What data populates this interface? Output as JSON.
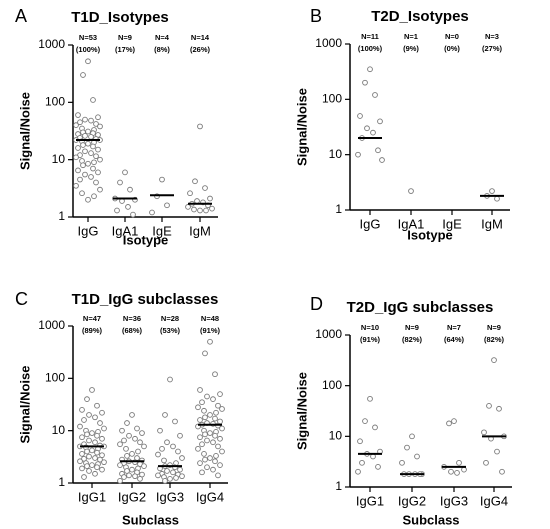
{
  "chart_data": [
    {
      "type": "dotplot",
      "panel": "A",
      "title": "T1D_Isotypes",
      "x_label": "Isotype",
      "y_label": "Signal/Noise",
      "log_y": true,
      "ylim": [
        1,
        1000
      ],
      "yticks": [
        1,
        10,
        100,
        1000
      ],
      "categories": [
        "IgG",
        "IgA1",
        "IgE",
        "IgM"
      ],
      "n_labels": [
        "N=53",
        "N=9",
        "N=4",
        "N=14"
      ],
      "pct_labels": [
        "(100%)",
        "(17%)",
        "(8%)",
        "(26%)"
      ],
      "medians": [
        22,
        2.1,
        2.4,
        1.7
      ],
      "points": [
        [
          520,
          300,
          110,
          60,
          55,
          50,
          48,
          45,
          42,
          40,
          38,
          35,
          33,
          31,
          30,
          29,
          28,
          27,
          26,
          25,
          24,
          23,
          22,
          22,
          21,
          20,
          19,
          18,
          17,
          16,
          15,
          14,
          13,
          12,
          11.5,
          11,
          10,
          9.5,
          9,
          8.5,
          8,
          7,
          6.5,
          6,
          5.5,
          5,
          4.5,
          4,
          3.5,
          3,
          2.6,
          2.3,
          2.0
        ],
        [
          6,
          4,
          3,
          2.1,
          2.0,
          1.9,
          1.5,
          1.3,
          1.1
        ],
        [
          4.5,
          2.3,
          1.6,
          1.2
        ],
        [
          38,
          4.2,
          3.2,
          2.6,
          2.1,
          1.9,
          1.8,
          1.7,
          1.6,
          1.5,
          1.4,
          1.35,
          1.3,
          1.3
        ]
      ]
    },
    {
      "type": "dotplot",
      "panel": "B",
      "title": "T2D_Isotypes",
      "x_label": "Isotype",
      "y_label": "Signal/Noise",
      "log_y": true,
      "ylim": [
        1,
        1000
      ],
      "yticks": [
        1,
        10,
        100,
        1000
      ],
      "categories": [
        "IgG",
        "IgA1",
        "IgE",
        "IgM"
      ],
      "n_labels": [
        "N=11",
        "N=1",
        "N=0",
        "N=3"
      ],
      "pct_labels": [
        "(100%)",
        "(9%)",
        "(0%)",
        "(27%)"
      ],
      "medians": [
        20,
        null,
        null,
        1.8
      ],
      "points": [
        [
          350,
          200,
          120,
          50,
          40,
          30,
          25,
          20,
          12,
          10,
          8
        ],
        [
          2.2
        ],
        [],
        [
          2.2,
          1.8,
          1.6
        ]
      ]
    },
    {
      "type": "dotplot",
      "panel": "C",
      "title": "T1D_IgG subclasses",
      "x_label": "Subclass",
      "y_label": "Signal/Noise",
      "log_y": true,
      "ylim": [
        1,
        1000
      ],
      "yticks": [
        1,
        10,
        100,
        1000
      ],
      "categories": [
        "IgG1",
        "IgG2",
        "IgG3",
        "IgG4"
      ],
      "n_labels": [
        "N=47",
        "N=36",
        "N=28",
        "N=48"
      ],
      "pct_labels": [
        "(89%)",
        "(68%)",
        "(53%)",
        "(91%)"
      ],
      "medians": [
        5,
        2.6,
        2.1,
        13
      ],
      "points": [
        [
          60,
          40,
          30,
          25,
          22,
          20,
          18,
          16,
          14,
          12,
          11,
          10,
          9.5,
          9,
          8.5,
          8,
          7.5,
          7,
          6.5,
          6,
          5.5,
          5.2,
          5,
          5,
          4.8,
          4.5,
          4.2,
          4,
          3.8,
          3.6,
          3.4,
          3.2,
          3,
          2.9,
          2.8,
          2.6,
          2.5,
          2.4,
          2.3,
          2.2,
          2.1,
          2.0,
          1.9,
          1.8,
          1.7,
          1.5,
          1.3
        ],
        [
          20,
          14,
          11,
          10,
          9,
          8,
          7,
          6.5,
          6,
          5.5,
          5,
          4.5,
          4,
          3.6,
          3.3,
          3,
          2.8,
          2.7,
          2.6,
          2.5,
          2.4,
          2.3,
          2.2,
          2.1,
          2.0,
          1.9,
          1.8,
          1.7,
          1.6,
          1.5,
          1.45,
          1.4,
          1.35,
          1.3,
          1.2,
          1.1
        ],
        [
          95,
          20,
          15,
          10,
          8,
          6,
          5,
          4.5,
          4,
          3.5,
          3,
          2.7,
          2.4,
          2.2,
          2.1,
          2.0,
          1.9,
          1.8,
          1.7,
          1.6,
          1.5,
          1.45,
          1.4,
          1.35,
          1.3,
          1.25,
          1.2,
          1.1
        ],
        [
          500,
          300,
          120,
          60,
          50,
          45,
          40,
          35,
          30,
          28,
          26,
          24,
          22,
          20,
          18,
          17,
          16,
          15,
          14,
          13.5,
          13,
          12.5,
          12,
          11,
          10,
          9.5,
          9,
          8.5,
          8,
          7.5,
          7,
          6.5,
          6,
          5.5,
          5,
          4.5,
          4,
          3.6,
          3.3,
          3,
          2.8,
          2.6,
          2.4,
          2.2,
          2.0,
          1.8,
          1.6,
          1.4
        ]
      ]
    },
    {
      "type": "dotplot",
      "panel": "D",
      "title": "T2D_IgG subclasses",
      "x_label": "Subclass",
      "y_label": "Signal/Noise",
      "log_y": true,
      "ylim": [
        1,
        1000
      ],
      "yticks": [
        1,
        10,
        100,
        1000
      ],
      "categories": [
        "IgG1",
        "IgG2",
        "IgG3",
        "IgG4"
      ],
      "n_labels": [
        "N=10",
        "N=9",
        "N=7",
        "N=9"
      ],
      "pct_labels": [
        "(91%)",
        "(82%)",
        "(64%)",
        "(82%)"
      ],
      "medians": [
        4.5,
        1.8,
        2.5,
        10
      ],
      "points": [
        [
          55,
          20,
          15,
          8,
          5,
          4.5,
          4,
          3,
          2.5,
          2
        ],
        [
          10,
          6,
          4,
          3,
          1.8,
          1.8,
          1.8,
          1.8,
          1.8
        ],
        [
          20,
          18,
          3,
          2.5,
          2.2,
          2,
          1.9
        ],
        [
          320,
          40,
          35,
          12,
          10,
          9,
          5,
          3,
          2
        ]
      ]
    }
  ]
}
